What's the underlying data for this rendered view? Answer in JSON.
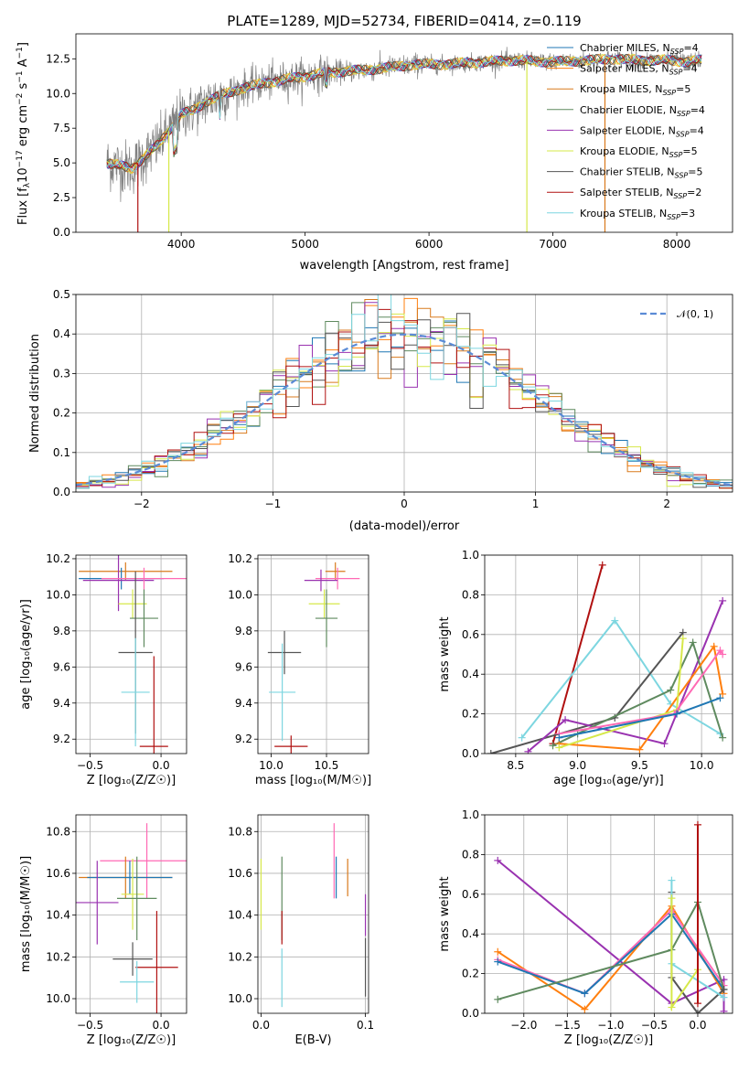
{
  "chart_data": [
    {
      "type": "line",
      "title": "PLATE=1289, MJD=52734, FIBERID=0414, z=0.119",
      "xlabel": "wavelength [Angstrom, rest frame]",
      "ylabel": "Flux [f_λ 10^-17 erg cm^-2 s^-1 A^-1]",
      "xlim": [
        3150,
        8450
      ],
      "ylim": [
        0,
        14.3
      ],
      "xticks": [
        "4000",
        "5000",
        "6000",
        "7000",
        "8000"
      ],
      "yticks": [
        "0.0",
        "2.5",
        "5.0",
        "7.5",
        "10.0",
        "12.5"
      ],
      "legend_position": "top-right",
      "series": [
        {
          "name": "Chabrier MILES, N_SSP=4",
          "legend": "Chabrier MILES, N",
          "legend_sup": "SSP",
          "legend_tail": "=4",
          "color": "#1f77b4"
        },
        {
          "name": "Salpeter MILES, N_SSP=4",
          "legend": "Salpeter MILES, N",
          "legend_sup": "SSP",
          "legend_tail": "=4",
          "color": "#ff7f0e"
        },
        {
          "name": "Kroupa MILES, N_SSP=5",
          "legend": "Kroupa MILES, N",
          "legend_sup": "SSP",
          "legend_tail": "=5",
          "color": "#d97a1c"
        },
        {
          "name": "Chabrier ELODIE, N_SSP=4",
          "legend": "Chabrier ELODIE, N",
          "legend_sup": "SSP",
          "legend_tail": "=4",
          "color": "#5f8a5f"
        },
        {
          "name": "Salpeter ELODIE, N_SSP=4",
          "legend": "Salpeter ELODIE, N",
          "legend_sup": "SSP",
          "legend_tail": "=4",
          "color": "#9932b0"
        },
        {
          "name": "Kroupa ELODIE, N_SSP=5",
          "legend": "Kroupa ELODIE, N",
          "legend_sup": "SSP",
          "legend_tail": "=5",
          "color": "#d6e84a"
        },
        {
          "name": "Chabrier STELIB, N_SSP=5",
          "legend": "Chabrier STELIB, N",
          "legend_sup": "SSP",
          "legend_tail": "=5",
          "color": "#555555"
        },
        {
          "name": "Salpeter STELIB, N_SSP=2",
          "legend": "Salpeter STELIB, N",
          "legend_sup": "SSP",
          "legend_tail": "=2",
          "color": "#b01010"
        },
        {
          "name": "Kroupa STELIB, N_SSP=3",
          "legend": "Kroupa STELIB, N",
          "legend_sup": "SSP",
          "legend_tail": "=3",
          "color": "#7dd6e0"
        }
      ],
      "continuum": {
        "x": [
          3400,
          3600,
          3700,
          3800,
          3900,
          4000,
          4100,
          4200,
          4300,
          4500,
          4700,
          4900,
          5100,
          5300,
          5500,
          5700,
          5900,
          6100,
          6300,
          6500,
          6700,
          6900,
          7100,
          7300,
          7500,
          7700,
          7900,
          8100,
          8200
        ],
        "y": [
          5.0,
          4.6,
          5.4,
          6.2,
          7.3,
          8.5,
          8.8,
          9.4,
          9.8,
          10.4,
          10.8,
          11.1,
          11.4,
          11.6,
          11.7,
          11.9,
          12.1,
          12.1,
          12.2,
          12.3,
          12.4,
          12.3,
          12.3,
          12.4,
          12.5,
          12.4,
          12.4,
          12.3,
          12.4
        ]
      }
    },
    {
      "type": "line",
      "xlabel": "(data-model)/error",
      "ylabel": "Normed distribution",
      "xlim": [
        -2.5,
        2.5
      ],
      "ylim": [
        0,
        0.5
      ],
      "xticks": [
        "−2",
        "−1",
        "0",
        "1",
        "2"
      ],
      "yticks": [
        "0.0",
        "0.1",
        "0.2",
        "0.3",
        "0.4",
        "0.5"
      ],
      "legend": "𝒩(0, 1)",
      "bin_width": 0.1,
      "grid": true
    },
    {
      "type": "scatter",
      "xlabel": "Z [log₁₀(Z/Z☉)]",
      "ylabel": "age [log₁₀(age/yr)]",
      "xlim": [
        -0.6,
        0.18
      ],
      "ylim": [
        9.12,
        10.22
      ],
      "xticks": [
        "−0.5",
        "0.0"
      ],
      "yticks": [
        "9.2",
        "9.4",
        "9.6",
        "9.8",
        "10.0",
        "10.2"
      ],
      "points": [
        {
          "x": -0.25,
          "y": 10.13,
          "xerr": 0.33,
          "yerr": 0.05,
          "color": "#d97a1c"
        },
        {
          "x": -0.28,
          "y": 10.09,
          "xerr": 0.3,
          "yerr": 0.06,
          "color": "#1f77b4"
        },
        {
          "x": -0.3,
          "y": 10.08,
          "xerr": 0.25,
          "yerr": 0.17,
          "color": "#9932b0"
        },
        {
          "x": -0.12,
          "y": 10.09,
          "xerr": 0.3,
          "yerr": 0.06,
          "color": "#ff69b4"
        },
        {
          "x": -0.2,
          "y": 9.95,
          "xerr": 0.1,
          "yerr": 0.08,
          "color": "#d6e84a"
        },
        {
          "x": -0.12,
          "y": 9.87,
          "xerr": 0.1,
          "yerr": 0.16,
          "color": "#5f8a5f"
        },
        {
          "x": -0.18,
          "y": 9.68,
          "xerr": 0.12,
          "yerr": 0.45,
          "color": "#555555"
        },
        {
          "x": -0.18,
          "y": 9.46,
          "xerr": 0.1,
          "yerr": 0.3,
          "color": "#7dd6e0"
        },
        {
          "x": -0.05,
          "y": 9.16,
          "xerr": 0.1,
          "yerr": 0.5,
          "color": "#b01010"
        }
      ]
    },
    {
      "type": "scatter",
      "xlabel": "mass [log₁₀(M/M☉)]",
      "xlim": [
        9.88,
        10.88
      ],
      "ylim": [
        9.12,
        10.22
      ],
      "xticks": [
        "10.0",
        "10.5"
      ],
      "yticks": [
        "9.2",
        "9.4",
        "9.6",
        "9.8",
        "10.0",
        "10.2"
      ],
      "points": [
        {
          "x": 10.58,
          "y": 10.13,
          "xerr": 0.09,
          "yerr": 0.05,
          "color": "#d97a1c"
        },
        {
          "x": 10.6,
          "y": 10.09,
          "xerr": 0.2,
          "yerr": 0.06,
          "color": "#ff69b4"
        },
        {
          "x": 10.45,
          "y": 10.08,
          "xerr": 0.15,
          "yerr": 0.06,
          "color": "#9932b0"
        },
        {
          "x": 10.48,
          "y": 9.95,
          "xerr": 0.14,
          "yerr": 0.08,
          "color": "#d6e84a"
        },
        {
          "x": 10.5,
          "y": 9.87,
          "xerr": 0.1,
          "yerr": 0.16,
          "color": "#5f8a5f"
        },
        {
          "x": 10.12,
          "y": 9.68,
          "xerr": 0.15,
          "yerr": 0.12,
          "color": "#555555"
        },
        {
          "x": 10.1,
          "y": 9.46,
          "xerr": 0.12,
          "yerr": 0.27,
          "color": "#7dd6e0"
        },
        {
          "x": 10.18,
          "y": 9.16,
          "xerr": 0.15,
          "yerr": 0.06,
          "color": "#b01010"
        }
      ]
    },
    {
      "type": "line",
      "xlabel": "age [log₁₀(age/yr)]",
      "ylabel": "mass weight",
      "xlim": [
        8.25,
        10.25
      ],
      "ylim": [
        0,
        1.0
      ],
      "xticks": [
        "8.5",
        "9.0",
        "9.5",
        "10.0"
      ],
      "yticks": [
        "0.0",
        "0.2",
        "0.4",
        "0.6",
        "0.8",
        "1.0"
      ],
      "grid": true,
      "series": [
        {
          "color": "#b01010",
          "x": [
            8.8,
            9.2
          ],
          "y": [
            0.05,
            0.95
          ]
        },
        {
          "color": "#7dd6e0",
          "x": [
            8.55,
            9.3,
            9.75,
            10.15
          ],
          "y": [
            0.08,
            0.67,
            0.25,
            0.1
          ]
        },
        {
          "color": "#555555",
          "x": [
            8.3,
            9.3,
            9.85
          ],
          "y": [
            0.0,
            0.18,
            0.61
          ]
        },
        {
          "color": "#9932b0",
          "x": [
            8.6,
            8.9,
            9.7,
            10.17
          ],
          "y": [
            0.01,
            0.17,
            0.05,
            0.77
          ]
        },
        {
          "color": "#5f8a5f",
          "x": [
            8.8,
            9.0,
            9.75,
            9.93,
            10.17
          ],
          "y": [
            0.04,
            0.1,
            0.32,
            0.56,
            0.08
          ]
        },
        {
          "color": "#ff7f0e",
          "x": [
            8.85,
            9.5,
            10.1,
            10.17
          ],
          "y": [
            0.05,
            0.02,
            0.54,
            0.3
          ]
        },
        {
          "color": "#d6e84a",
          "x": [
            8.85,
            9.8,
            9.85
          ],
          "y": [
            0.03,
            0.22,
            0.58
          ]
        },
        {
          "color": "#ff69b4",
          "x": [
            8.85,
            9.78,
            10.15,
            10.17
          ],
          "y": [
            0.1,
            0.2,
            0.52,
            0.5
          ]
        },
        {
          "color": "#1f77b4",
          "x": [
            8.85,
            9.8,
            10.15
          ],
          "y": [
            0.08,
            0.2,
            0.28
          ]
        }
      ]
    },
    {
      "type": "scatter",
      "xlabel": "Z [log₁₀(Z/Z☉)]",
      "ylabel": "mass [log₁₀(M/M☉)]",
      "xlim": [
        -0.6,
        0.18
      ],
      "ylim": [
        9.93,
        10.88
      ],
      "xticks": [
        "−0.5",
        "0.0"
      ],
      "yticks": [
        "10.0",
        "10.2",
        "10.4",
        "10.6",
        "10.8"
      ],
      "points": [
        {
          "x": -0.1,
          "y": 10.66,
          "xerr": 0.33,
          "yerr": 0.18,
          "color": "#ff69b4"
        },
        {
          "x": -0.25,
          "y": 10.58,
          "xerr": 0.33,
          "yerr": 0.1,
          "color": "#d97a1c"
        },
        {
          "x": -0.22,
          "y": 10.58,
          "xerr": 0.3,
          "yerr": 0.08,
          "color": "#1f77b4"
        },
        {
          "x": -0.2,
          "y": 10.5,
          "xerr": 0.08,
          "yerr": 0.17,
          "color": "#d6e84a"
        },
        {
          "x": -0.17,
          "y": 10.48,
          "xerr": 0.14,
          "yerr": 0.2,
          "color": "#5f8a5f"
        },
        {
          "x": -0.45,
          "y": 10.46,
          "xerr": 0.15,
          "yerr": 0.2,
          "color": "#9932b0"
        },
        {
          "x": -0.2,
          "y": 10.19,
          "xerr": 0.14,
          "yerr": 0.08,
          "color": "#555555"
        },
        {
          "x": -0.03,
          "y": 10.15,
          "xerr": 0.15,
          "yerr": 0.27,
          "color": "#b01010"
        },
        {
          "x": -0.17,
          "y": 10.08,
          "xerr": 0.12,
          "yerr": 0.1,
          "color": "#7dd6e0"
        }
      ]
    },
    {
      "type": "scatter",
      "xlabel": "E(B-V)",
      "xlim": [
        -0.003,
        0.103
      ],
      "ylim": [
        9.93,
        10.88
      ],
      "xticks": [
        "0.0",
        "0.1"
      ],
      "yticks": [
        "10.0",
        "10.2",
        "10.4",
        "10.6",
        "10.8"
      ],
      "points": [
        {
          "x": 0.0,
          "y": 10.5,
          "xerr": 0,
          "yerr": 0.17,
          "color": "#d6e84a"
        },
        {
          "x": 0.02,
          "y": 10.48,
          "xerr": 0,
          "yerr": 0.2,
          "color": "#5f8a5f"
        },
        {
          "x": 0.02,
          "y": 10.34,
          "xerr": 0,
          "yerr": 0.08,
          "color": "#b01010"
        },
        {
          "x": 0.02,
          "y": 10.1,
          "xerr": 0,
          "yerr": 0.14,
          "color": "#7dd6e0"
        },
        {
          "x": 0.07,
          "y": 10.66,
          "xerr": 0,
          "yerr": 0.18,
          "color": "#ff69b4"
        },
        {
          "x": 0.072,
          "y": 10.58,
          "xerr": 0,
          "yerr": 0.1,
          "color": "#1f77b4"
        },
        {
          "x": 0.083,
          "y": 10.58,
          "xerr": 0,
          "yerr": 0.09,
          "color": "#d97a1c"
        },
        {
          "x": 0.1,
          "y": 10.4,
          "xerr": 0,
          "yerr": 0.1,
          "color": "#9932b0"
        },
        {
          "x": 0.1,
          "y": 10.15,
          "xerr": 0,
          "yerr": 0.14,
          "color": "#555555"
        }
      ]
    },
    {
      "type": "line",
      "xlabel": "Z [log₁₀(Z/Z☉)]",
      "ylabel": "mass weight",
      "xlim": [
        -2.45,
        0.4
      ],
      "ylim": [
        0,
        1.0
      ],
      "xticks": [
        "−2.0",
        "−1.5",
        "−1.0",
        "−0.5",
        "0.0"
      ],
      "yticks": [
        "0.0",
        "0.2",
        "0.4",
        "0.6",
        "0.8",
        "1.0"
      ],
      "grid": true,
      "series": [
        {
          "color": "#9932b0",
          "x": [
            -2.3,
            -0.3,
            0.3,
            0.3
          ],
          "y": [
            0.77,
            0.05,
            0.17,
            0.01
          ]
        },
        {
          "color": "#ff7f0e",
          "x": [
            -2.3,
            -1.3,
            -0.3,
            0.3
          ],
          "y": [
            0.31,
            0.02,
            0.54,
            0.1
          ]
        },
        {
          "color": "#ff69b4",
          "x": [
            -2.3,
            -1.3,
            -0.3,
            0.3
          ],
          "y": [
            0.27,
            0.1,
            0.52,
            0.14
          ]
        },
        {
          "color": "#1f77b4",
          "x": [
            -2.3,
            -1.3,
            -0.3,
            0.3
          ],
          "y": [
            0.26,
            0.1,
            0.5,
            0.12
          ]
        },
        {
          "color": "#5f8a5f",
          "x": [
            -2.3,
            -0.3,
            0.0,
            0.3
          ],
          "y": [
            0.07,
            0.32,
            0.56,
            0.12
          ]
        },
        {
          "color": "#555555",
          "x": [
            -0.3,
            -0.3,
            0.0,
            0.3
          ],
          "y": [
            0.61,
            0.18,
            0.0,
            0.12
          ]
        },
        {
          "color": "#7dd6e0",
          "x": [
            -0.3,
            -0.3,
            0.3
          ],
          "y": [
            0.67,
            0.25,
            0.08
          ]
        },
        {
          "color": "#d6e84a",
          "x": [
            -0.3,
            -0.3,
            0.0
          ],
          "y": [
            0.58,
            0.03,
            0.22
          ]
        },
        {
          "color": "#b01010",
          "x": [
            0.0,
            0.0
          ],
          "y": [
            0.05,
            0.95
          ]
        }
      ]
    }
  ]
}
